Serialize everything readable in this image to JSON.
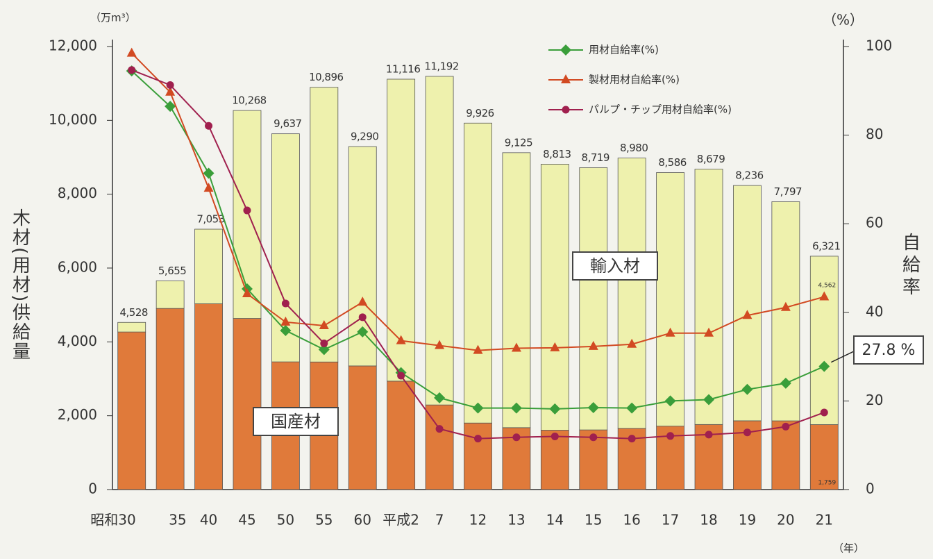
{
  "chart_data": {
    "type": "bar_line",
    "y_unit": "（万m³）",
    "y2_unit": "（%）",
    "ylabel": "木材(用材)供給量",
    "y2label": "自給率",
    "x_unit": "（年）",
    "categories": [
      "昭和30",
      "35",
      "40",
      "45",
      "50",
      "55",
      "60",
      "平成2",
      "7",
      "12",
      "13",
      "14",
      "15",
      "16",
      "17",
      "18",
      "19",
      "20",
      "21"
    ],
    "total_labels": [
      "4,528",
      "5,655",
      "7,053",
      "10,268",
      "9,637",
      "10,896",
      "9,290",
      "11,116",
      "11,192",
      "9,926",
      "9,125",
      "8,813",
      "8,719",
      "8,980",
      "8,586",
      "8,679",
      "8,236",
      "7,797",
      "6,321"
    ],
    "bar_series": [
      {
        "name": "国産材",
        "color": "#e07a3a",
        "values": [
          4268,
          4906,
          5032,
          4635,
          3459,
          3456,
          3349,
          2937,
          2292,
          1802,
          1677,
          1608,
          1616,
          1656,
          1718,
          1762,
          1863,
          1861,
          1759
        ],
        "value_labels": [
          null,
          null,
          null,
          null,
          null,
          null,
          null,
          null,
          null,
          null,
          null,
          null,
          null,
          null,
          null,
          null,
          null,
          null,
          "1,759"
        ]
      },
      {
        "name": "輸入材",
        "color": "#eef1ad",
        "values": [
          260,
          749,
          2021,
          5633,
          6178,
          7440,
          5941,
          8179,
          8900,
          8124,
          7448,
          7205,
          7103,
          7324,
          6868,
          6917,
          6373,
          5936,
          4562
        ],
        "value_labels": [
          null,
          null,
          null,
          null,
          null,
          null,
          null,
          null,
          null,
          null,
          null,
          null,
          null,
          null,
          null,
          null,
          null,
          null,
          "4,562"
        ]
      }
    ],
    "series": [
      {
        "name": "用材自給率(%)",
        "color": "#3a9e3a",
        "marker": "diamond",
        "axis": "y2",
        "values": [
          94.5,
          86.5,
          71.4,
          45.3,
          35.9,
          31.6,
          35.6,
          26.4,
          20.7,
          18.4,
          18.4,
          18.2,
          18.5,
          18.4,
          20.0,
          20.3,
          22.6,
          24.0,
          27.8
        ]
      },
      {
        "name": "製材用材自給率(%)",
        "color": "#d24a22",
        "marker": "triangle",
        "axis": "y2",
        "values": [
          98.5,
          89.7,
          68.0,
          44.2,
          37.8,
          37.0,
          42.3,
          33.6,
          32.5,
          31.4,
          31.9,
          32.0,
          32.3,
          32.8,
          35.3,
          35.3,
          39.3,
          41.1,
          43.5
        ]
      },
      {
        "name": "パルプ・チップ用材自給率(%)",
        "color": "#a0204e",
        "marker": "circle",
        "axis": "y2",
        "values": [
          94.7,
          91.3,
          82.1,
          63.0,
          42.0,
          33.0,
          38.9,
          25.7,
          13.7,
          11.5,
          11.8,
          12.0,
          11.8,
          11.5,
          12.1,
          12.4,
          12.9,
          14.2,
          17.4
        ]
      }
    ],
    "annotation": "27.8 %",
    "ylim": [
      0,
      12000
    ],
    "yticks": [
      0,
      {
        "value": 2000,
        "label": "2,000"
      },
      {
        "value": 4000,
        "label": "4,000"
      },
      {
        "value": 6000,
        "label": "6,000"
      },
      {
        "value": 8000,
        "label": "8,000"
      },
      {
        "value": 10000,
        "label": "10,000"
      },
      {
        "value": 12000,
        "label": "12,000"
      }
    ],
    "y2lim": [
      0,
      100
    ],
    "y2ticks": [
      0,
      20,
      40,
      60,
      80,
      100
    ],
    "legend": "top-right"
  }
}
